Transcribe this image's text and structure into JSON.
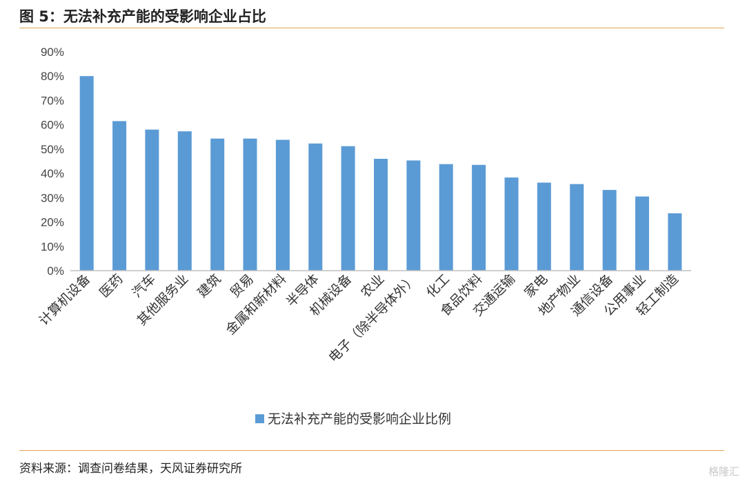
{
  "figure": {
    "title": "图 5：无法补充产能的受影响企业占比",
    "source": "资料来源：调查问卷结果，天风证券研究所",
    "watermark": "格隆汇"
  },
  "colors": {
    "bar": "#5b9bd5",
    "rule": "#e2a552",
    "axis": "#bfbfbf"
  },
  "chart_data": {
    "type": "bar",
    "categories": [
      "计算机设备",
      "医药",
      "汽车",
      "其他服务业",
      "建筑",
      "贸易",
      "金属和新材料",
      "半导体",
      "机械设备",
      "农业",
      "电子（除半导体外）",
      "化工",
      "食品饮料",
      "交通运输",
      "家电",
      "地产物业",
      "通信设备",
      "公用事业",
      "轻工制造"
    ],
    "series": [
      {
        "name": "无法补充产能的受影响企业比例",
        "values": [
          80,
          61.5,
          58,
          57.3,
          54.3,
          54.3,
          53.8,
          52.3,
          51.2,
          46,
          45.3,
          43.8,
          43.5,
          38.3,
          36.2,
          35.6,
          33.2,
          30.5,
          23.6
        ]
      }
    ],
    "yticks": [
      "0%",
      "10%",
      "20%",
      "30%",
      "40%",
      "50%",
      "60%",
      "70%",
      "80%",
      "90%"
    ],
    "ylim": [
      0,
      90
    ],
    "grid": false,
    "legend_position": "bottom"
  }
}
